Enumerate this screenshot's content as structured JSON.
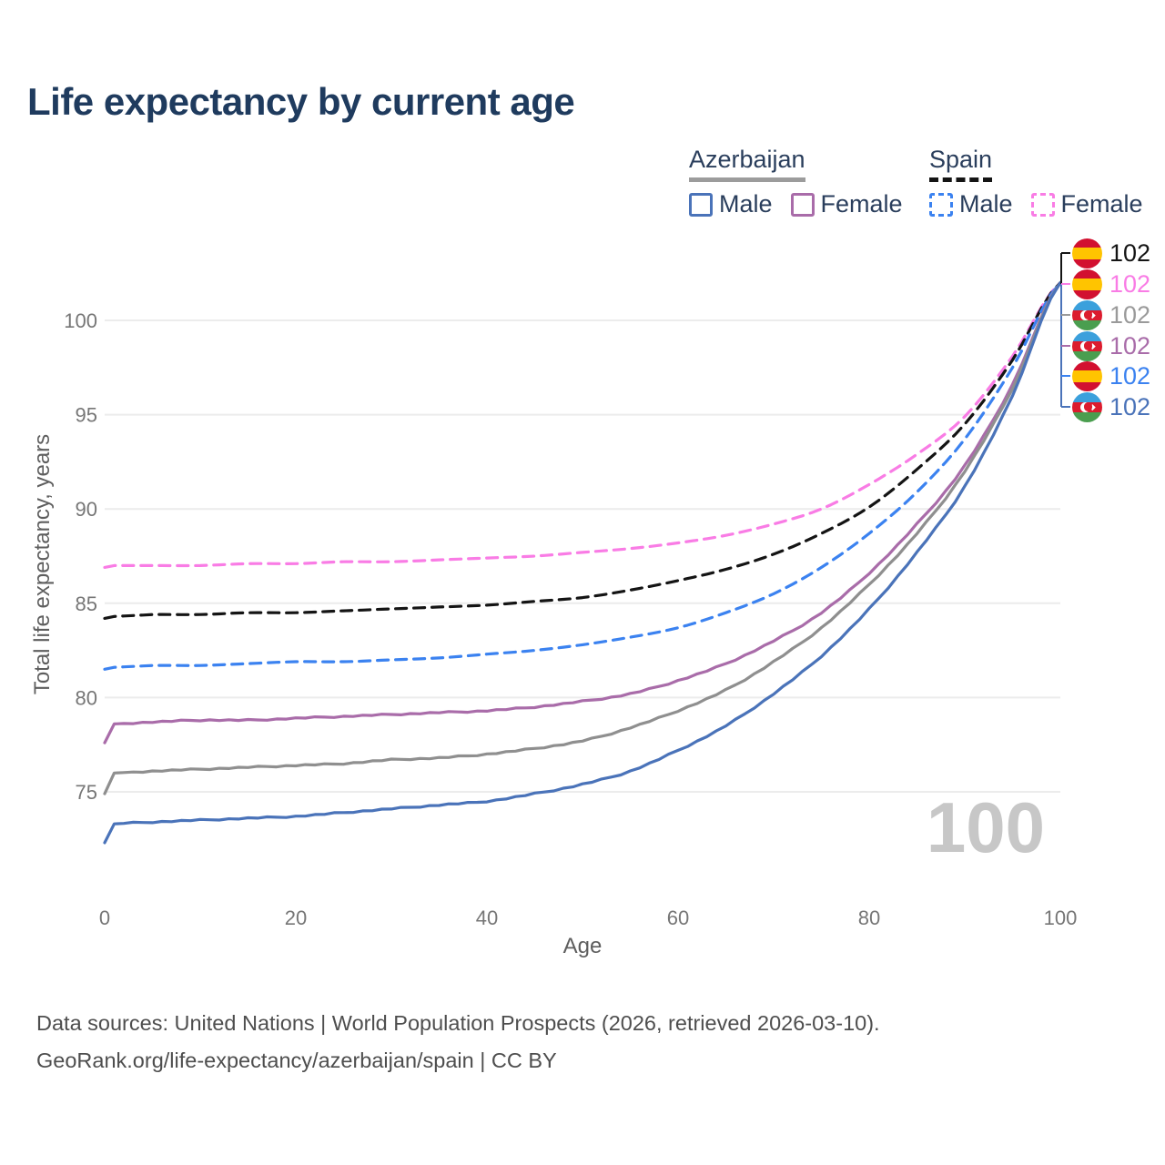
{
  "title": "Life expectancy by current age",
  "legend": {
    "azerbaijan": {
      "label": "Azerbaijan",
      "male": "Male",
      "female": "Female"
    },
    "spain": {
      "label": "Spain",
      "male": "Male",
      "female": "Female"
    }
  },
  "y_axis": {
    "label": "Total life expectancy, years",
    "ticks": [
      "75",
      "80",
      "85",
      "90",
      "95",
      "100"
    ]
  },
  "x_axis": {
    "label": "Age",
    "ticks": [
      "0",
      "20",
      "40",
      "60",
      "80",
      "100"
    ]
  },
  "watermark": "100",
  "end_labels": [
    {
      "country": "spain",
      "series": "Spain",
      "value": "102",
      "color": "#141414"
    },
    {
      "country": "spain",
      "series": "Spain Female",
      "value": "102",
      "color": "#F97CE5"
    },
    {
      "country": "azerbaijan",
      "series": "Azerbaijan",
      "value": "102",
      "color": "#9A9A9A"
    },
    {
      "country": "azerbaijan",
      "series": "Azerbaijan Female",
      "value": "102",
      "color": "#A96CA9"
    },
    {
      "country": "spain",
      "series": "Spain Male",
      "value": "102",
      "color": "#3B82F0"
    },
    {
      "country": "azerbaijan",
      "series": "Azerbaijan Male",
      "value": "102",
      "color": "#4A73B9"
    }
  ],
  "footer": {
    "line1": "Data sources: United Nations | World Population Prospects (2026, retrieved 2026-03-10).",
    "line2": "GeoRank.org/life-expectancy/azerbaijan/spain | CC BY"
  },
  "colors": {
    "title_navy": "#1F3B5E",
    "gridline": "#ECECEC",
    "tick_text": "#767676",
    "axis_title": "#5E5E5E",
    "watermark": "#C7C7C7",
    "spain_female": "#F97CE5",
    "spain_total": "#141414",
    "spain_male": "#3B82F0",
    "azerbaijan_female": "#A96CA9",
    "azerbaijan_total": "#8F8F8F",
    "azerbaijan_male": "#4A73B9"
  },
  "chart_data": {
    "type": "line",
    "title": "Life expectancy by current age",
    "xlabel": "Age",
    "ylabel": "Total life expectancy, years",
    "xlim": [
      0,
      100
    ],
    "ylim": [
      72,
      102
    ],
    "grid": "horizontal",
    "legend_position": "top-right",
    "x": [
      0,
      1,
      5,
      10,
      15,
      20,
      25,
      30,
      35,
      40,
      45,
      50,
      55,
      60,
      65,
      70,
      75,
      80,
      85,
      90,
      95,
      100
    ],
    "series": [
      {
        "name": "Spain Female",
        "style": "dashed",
        "color": "#F97CE5",
        "values": [
          86.9,
          87.0,
          87.0,
          87.0,
          87.1,
          87.1,
          87.2,
          87.2,
          87.3,
          87.4,
          87.5,
          87.7,
          87.9,
          88.2,
          88.6,
          89.2,
          90.0,
          91.3,
          92.9,
          94.9,
          98.1,
          102
        ]
      },
      {
        "name": "Spain",
        "style": "dashed",
        "color": "#141414",
        "values": [
          84.2,
          84.3,
          84.4,
          84.4,
          84.5,
          84.5,
          84.6,
          84.7,
          84.8,
          84.9,
          85.1,
          85.3,
          85.7,
          86.2,
          86.8,
          87.6,
          88.7,
          90.1,
          92.1,
          94.5,
          97.9,
          102
        ]
      },
      {
        "name": "Spain Male",
        "style": "dashed",
        "color": "#3B82F0",
        "values": [
          81.5,
          81.6,
          81.7,
          81.7,
          81.8,
          81.9,
          81.9,
          82.0,
          82.1,
          82.3,
          82.5,
          82.8,
          83.2,
          83.7,
          84.5,
          85.5,
          86.9,
          88.7,
          90.9,
          93.7,
          97.5,
          102
        ]
      },
      {
        "name": "Azerbaijan Female",
        "style": "solid",
        "color": "#A96CA9",
        "values": [
          77.6,
          78.6,
          78.7,
          78.8,
          78.8,
          78.9,
          79.0,
          79.1,
          79.2,
          79.3,
          79.5,
          79.8,
          80.2,
          80.9,
          81.8,
          83.0,
          84.5,
          86.6,
          89.2,
          92.3,
          96.6,
          102
        ]
      },
      {
        "name": "Azerbaijan",
        "style": "solid",
        "color": "#8F8F8F",
        "values": [
          74.9,
          76.0,
          76.1,
          76.2,
          76.3,
          76.4,
          76.5,
          76.7,
          76.8,
          77.0,
          77.3,
          77.7,
          78.4,
          79.3,
          80.4,
          81.9,
          83.7,
          86.0,
          88.7,
          92.0,
          96.4,
          102
        ]
      },
      {
        "name": "Azerbaijan Male",
        "style": "solid",
        "color": "#4A73B9",
        "values": [
          72.3,
          73.3,
          73.4,
          73.5,
          73.6,
          73.7,
          73.9,
          74.1,
          74.3,
          74.5,
          74.9,
          75.4,
          76.1,
          77.2,
          78.5,
          80.2,
          82.2,
          84.7,
          87.7,
          91.2,
          96.0,
          102
        ]
      }
    ],
    "end_value_label": "102"
  }
}
